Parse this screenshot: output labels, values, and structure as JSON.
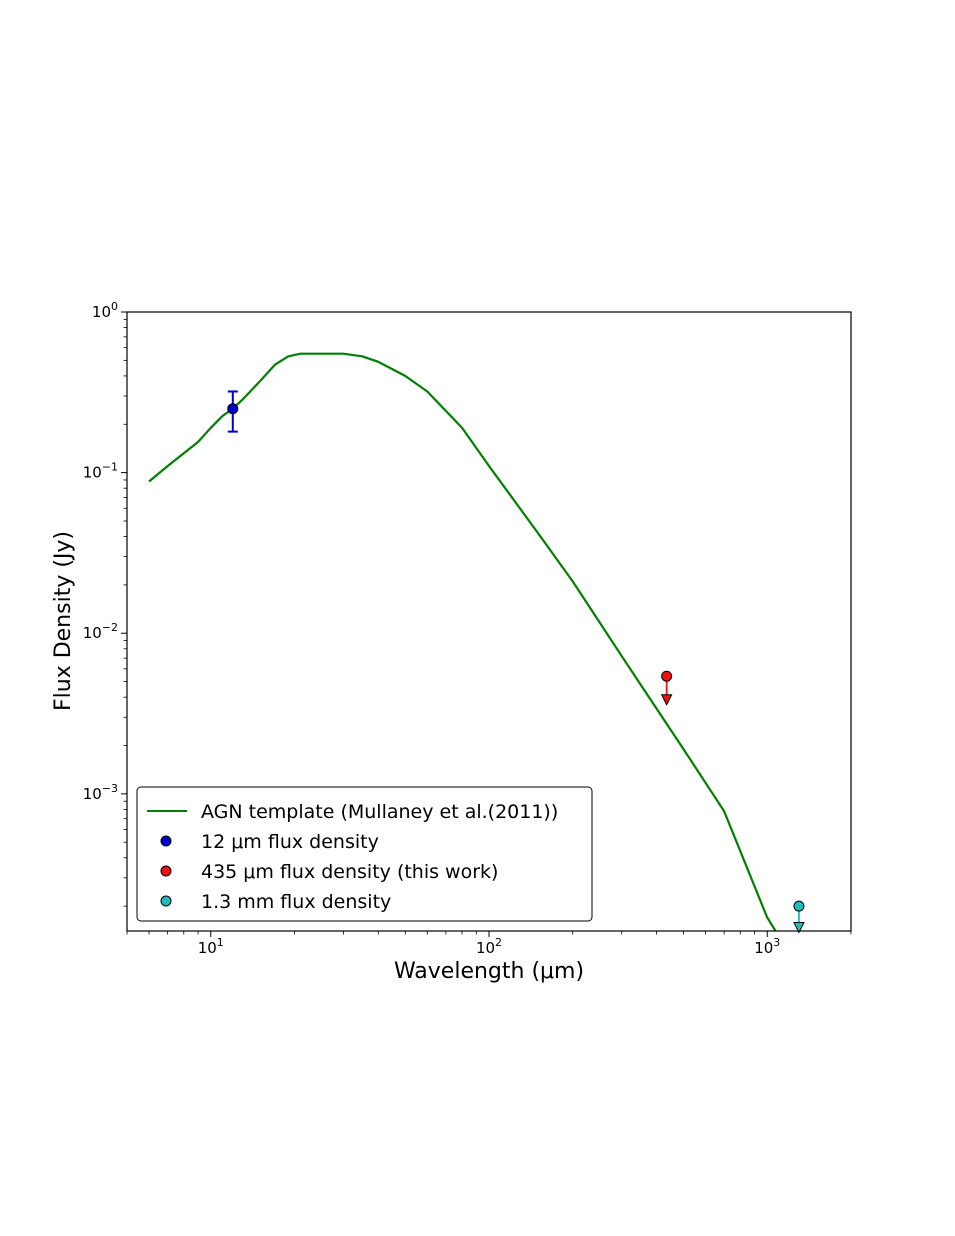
{
  "chart_data": {
    "type": "line",
    "title": "",
    "xlabel": "Wavelength (μm)",
    "ylabel": "Flux Density (Jy)",
    "x_scale": "log",
    "y_scale": "log",
    "xlim": [
      5,
      2000
    ],
    "ylim": [
      0.00014,
      1.0
    ],
    "x_ticks": [
      {
        "value": 10,
        "base": "10",
        "exp": "1"
      },
      {
        "value": 100,
        "base": "10",
        "exp": "2"
      },
      {
        "value": 1000,
        "base": "10",
        "exp": "3"
      }
    ],
    "y_ticks": [
      {
        "value": 1.0,
        "base": "10",
        "exp": "0"
      },
      {
        "value": 0.1,
        "base": "10",
        "exp": "−1"
      },
      {
        "value": 0.01,
        "base": "10",
        "exp": "−2"
      },
      {
        "value": 0.001,
        "base": "10",
        "exp": "−3"
      }
    ],
    "grid": false,
    "legend_position": "lower-left",
    "series": [
      {
        "name": "AGN template (Mullaney et al.(2011))",
        "kind": "line",
        "color": "#008000",
        "x": [
          6,
          7,
          8,
          9,
          10,
          11,
          12,
          13,
          15,
          17,
          19,
          21,
          25,
          30,
          35,
          40,
          50,
          60,
          80,
          100,
          150,
          200,
          300,
          400,
          500,
          700,
          1000,
          1100
        ],
        "y": [
          0.088,
          0.11,
          0.132,
          0.155,
          0.19,
          0.225,
          0.25,
          0.285,
          0.37,
          0.47,
          0.53,
          0.55,
          0.55,
          0.55,
          0.53,
          0.49,
          0.4,
          0.32,
          0.19,
          0.11,
          0.042,
          0.021,
          0.0072,
          0.0034,
          0.0019,
          0.00078,
          0.00017,
          0.00013
        ]
      },
      {
        "name": "12 μm flux density",
        "kind": "point",
        "color": "#0000cc",
        "x": 12,
        "y": 0.25,
        "yerr_low": 0.18,
        "yerr_high": 0.32
      },
      {
        "name": "435 μm flux density (this work)",
        "kind": "upper_limit",
        "color": "#ee1111",
        "x": 435,
        "y": 0.0054,
        "arrow_to": 0.0038
      },
      {
        "name": "1.3 mm flux density",
        "kind": "upper_limit",
        "color": "#22bbbb",
        "x": 1300,
        "y": 0.0002,
        "arrow_to": 0.000145
      }
    ]
  }
}
